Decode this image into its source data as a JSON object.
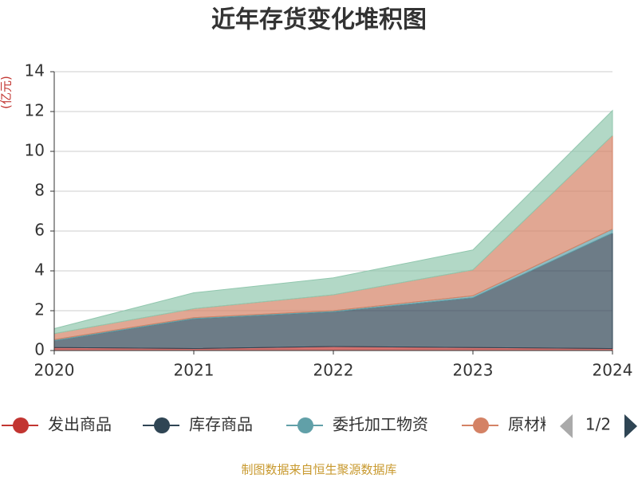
{
  "chart_data": {
    "type": "area",
    "stacked": true,
    "title": "近年存货变化堆积图",
    "y_label": "(亿元)",
    "source": "制图数据来自恒生聚源数据库",
    "legend_page": "1/2",
    "categories": [
      "2020",
      "2021",
      "2022",
      "2023",
      "2024"
    ],
    "series": [
      {
        "name": "发出商品",
        "color": "#c23531",
        "values": [
          0.15,
          0.1,
          0.2,
          0.15,
          0.1
        ]
      },
      {
        "name": "库存商品",
        "color": "#2f4554",
        "values": [
          0.35,
          1.5,
          1.75,
          2.5,
          5.8
        ]
      },
      {
        "name": "委托加工物资",
        "color": "#61a0a8",
        "values": [
          0.05,
          0.05,
          0.05,
          0.1,
          0.2
        ]
      },
      {
        "name": "原材料",
        "color": "#d48265",
        "values": [
          0.3,
          0.45,
          0.8,
          1.3,
          4.7
        ]
      },
      {
        "color": "#91c7ae",
        "values": [
          0.25,
          0.8,
          0.85,
          1.0,
          1.25
        ]
      }
    ],
    "ylim": [
      0,
      14
    ],
    "yticks": [
      0,
      2,
      4,
      6,
      8,
      10,
      12,
      14
    ],
    "grid": true
  }
}
